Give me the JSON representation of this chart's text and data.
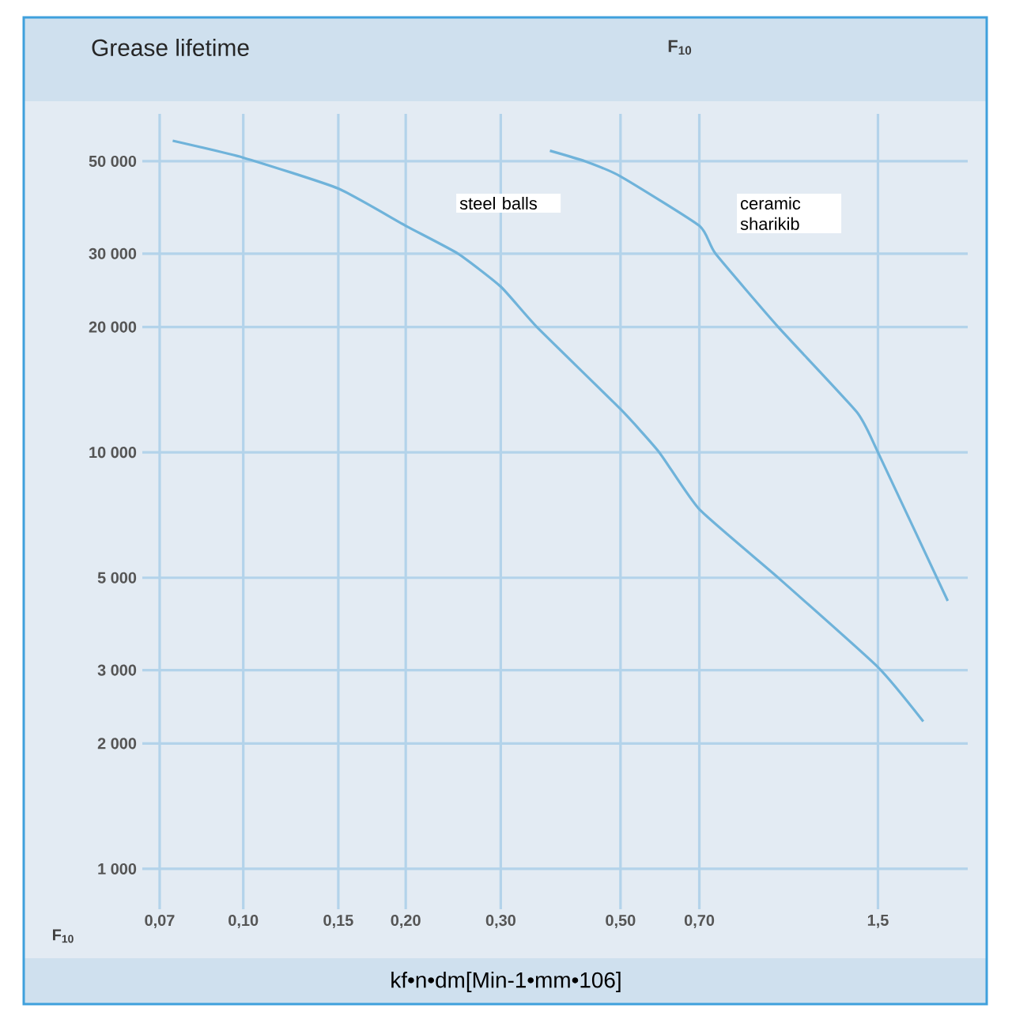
{
  "chart_data": {
    "type": "line",
    "title": "Grease lifetime",
    "xlabel": "kf•n•dm[Min-1•mm•106]",
    "annotations": [
      "F$_{10}$",
      "F$_{10}$"
    ],
    "log": "xy",
    "grid": true,
    "marker": "none",
    "line_style": "solid",
    "xlim": [
      0.065,
      2.2
    ],
    "ylim": [
      800,
      65000
    ],
    "xticks": [
      {
        "value": 0.07,
        "label": "0,07"
      },
      {
        "value": 0.1,
        "label": "0,10"
      },
      {
        "value": 0.15,
        "label": "0,15"
      },
      {
        "value": 0.2,
        "label": "0,20"
      },
      {
        "value": 0.3,
        "label": "0,30"
      },
      {
        "value": 0.5,
        "label": "0,50"
      },
      {
        "value": 0.7,
        "label": "0,70"
      },
      {
        "value": 1.5,
        "label": "1,5"
      }
    ],
    "yticks": [
      {
        "value": 1000,
        "label": "1 000"
      },
      {
        "value": 2000,
        "label": "2 000"
      },
      {
        "value": 3000,
        "label": "3 000"
      },
      {
        "value": 5000,
        "label": "5 000"
      },
      {
        "value": 10000,
        "label": "10 000"
      },
      {
        "value": 20000,
        "label": "20 000"
      },
      {
        "value": 30000,
        "label": "30 000"
      },
      {
        "value": 50000,
        "label": "50 000"
      }
    ],
    "series": [
      {
        "name": "steel balls",
        "color": "#6fb3da",
        "x": [
          0.074,
          0.1,
          0.15,
          0.2,
          0.25,
          0.3,
          0.35,
          0.5,
          0.59,
          0.7,
          0.98,
          1.5,
          1.82
        ],
        "values": [
          56000,
          51000,
          43000,
          35000,
          30000,
          25000,
          20000,
          12700,
          10000,
          7300,
          5000,
          3050,
          2260
        ]
      },
      {
        "name": "ceramic sharikib",
        "color": "#6fb3da",
        "x": [
          0.37,
          0.43,
          0.5,
          0.7,
          0.75,
          0.98,
          1.37,
          1.5,
          2.02
        ],
        "values": [
          53000,
          50000,
          46000,
          35000,
          30000,
          20000,
          12500,
          10000,
          4400
        ]
      }
    ]
  }
}
